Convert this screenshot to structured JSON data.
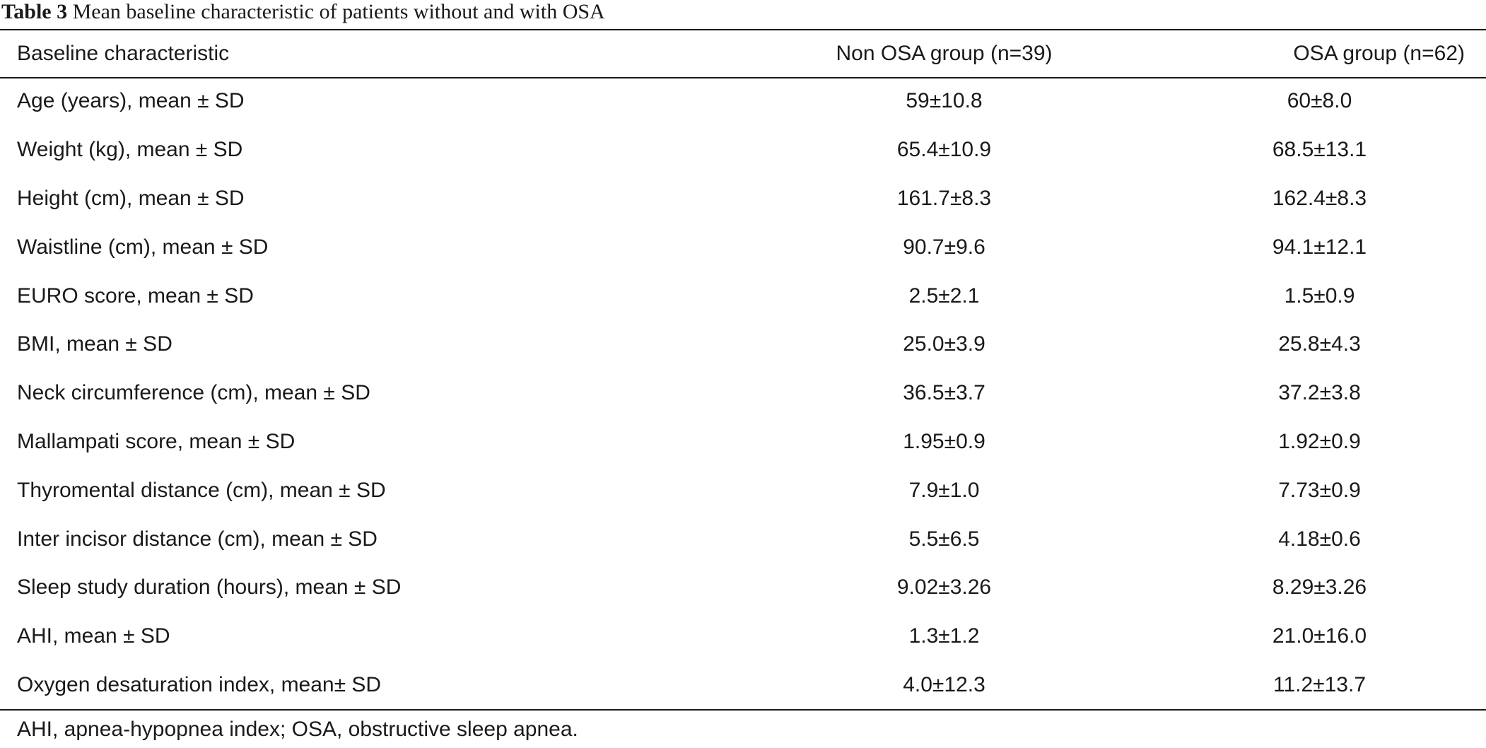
{
  "caption": {
    "label": "Table 3",
    "text": "Mean baseline characteristic of patients without and with OSA"
  },
  "table": {
    "headers": [
      "Baseline characteristic",
      "Non OSA group (n=39)",
      "OSA group (n=62)"
    ],
    "rows": [
      [
        "Age (years), mean ± SD",
        "59±10.8",
        "60±8.0"
      ],
      [
        "Weight (kg), mean ± SD",
        "65.4±10.9",
        "68.5±13.1"
      ],
      [
        "Height (cm), mean ± SD",
        "161.7±8.3",
        "162.4±8.3"
      ],
      [
        "Waistline (cm), mean ± SD",
        "90.7±9.6",
        "94.1±12.1"
      ],
      [
        "EURO score, mean ± SD",
        "2.5±2.1",
        "1.5±0.9"
      ],
      [
        "BMI, mean ± SD",
        "25.0±3.9",
        "25.8±4.3"
      ],
      [
        "Neck circumference (cm), mean ± SD",
        "36.5±3.7",
        "37.2±3.8"
      ],
      [
        "Mallampati score, mean ± SD",
        "1.95±0.9",
        "1.92±0.9"
      ],
      [
        "Thyromental distance (cm), mean ± SD",
        "7.9±1.0",
        "7.73±0.9"
      ],
      [
        "Inter incisor distance (cm), mean ± SD",
        "5.5±6.5",
        "4.18±0.6"
      ],
      [
        "Sleep study duration (hours), mean ± SD",
        "9.02±3.26",
        "8.29±3.26"
      ],
      [
        "AHI, mean ± SD",
        "1.3±1.2",
        "21.0±16.0"
      ],
      [
        "Oxygen desaturation index, mean± SD",
        "4.0±12.3",
        "11.2±13.7"
      ]
    ]
  },
  "footnote": "AHI, apnea-hypopnea index; OSA, obstructive sleep apnea."
}
